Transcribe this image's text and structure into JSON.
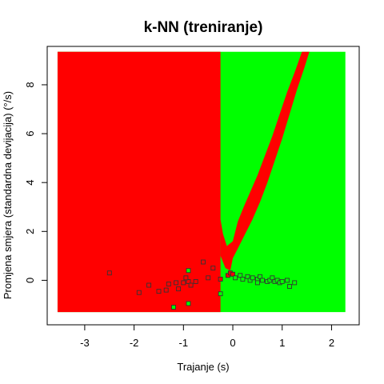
{
  "chart_data": {
    "type": "scatter",
    "title": "k-NN (treniranje)",
    "xlabel": "Trajanje (s)",
    "ylabel": "Promjena smjera (standardna devijacija) (°/s)",
    "xlim": [
      -3.76,
      2.56
    ],
    "ylim": [
      -1.82,
      9.57
    ],
    "x_ticks": [
      -3,
      -2,
      -1,
      0,
      1,
      2
    ],
    "y_ticks": [
      0,
      2,
      4,
      6,
      8
    ],
    "background_region": {
      "x": [
        -3.55,
        2.28
      ],
      "y": [
        -1.3,
        9.35
      ],
      "color": "#00ff00"
    },
    "red_region_left": {
      "x": [
        -3.55,
        -0.25
      ],
      "y": [
        -1.3,
        9.35
      ],
      "color": "#ff0000"
    },
    "red_band": {
      "color": "#ff0000",
      "left_edge": [
        [
          -0.25,
          2.5
        ],
        [
          -0.2,
          1.9
        ],
        [
          -0.12,
          1.4
        ],
        [
          0.0,
          1.6
        ],
        [
          0.1,
          2.4
        ],
        [
          0.22,
          3.0
        ],
        [
          0.35,
          3.6
        ],
        [
          0.5,
          4.3
        ],
        [
          0.65,
          5.1
        ],
        [
          0.8,
          5.9
        ],
        [
          0.95,
          6.8
        ],
        [
          1.1,
          7.7
        ],
        [
          1.25,
          8.5
        ],
        [
          1.4,
          9.35
        ]
      ],
      "right_edge": [
        [
          1.55,
          9.35
        ],
        [
          1.45,
          8.7
        ],
        [
          1.3,
          7.8
        ],
        [
          1.15,
          6.8
        ],
        [
          1.0,
          5.8
        ],
        [
          0.85,
          4.9
        ],
        [
          0.7,
          4.0
        ],
        [
          0.55,
          3.2
        ],
        [
          0.4,
          2.5
        ],
        [
          0.25,
          1.9
        ],
        [
          0.1,
          1.3
        ],
        [
          0.0,
          0.9
        ],
        [
          -0.05,
          0.4
        ],
        [
          -0.15,
          0.5
        ],
        [
          -0.25,
          1.0
        ]
      ]
    },
    "series": [
      {
        "color": "#ff0000",
        "marker": "square",
        "x": [
          -2.5,
          -1.7,
          -1.9,
          -1.5,
          -1.3,
          -1.35,
          -1.15,
          -1.1,
          -1.0,
          -0.9,
          -0.85,
          -0.95,
          -0.75,
          -0.6,
          -0.5,
          -0.4,
          -0.25,
          -0.1,
          -0.05,
          0.0
        ],
        "y": [
          0.3,
          -0.2,
          -0.5,
          -0.45,
          -0.15,
          -0.4,
          -0.1,
          -0.35,
          -0.1,
          -0.05,
          -0.2,
          0.1,
          -0.05,
          0.75,
          0.1,
          0.5,
          0.05,
          0.2,
          0.3,
          0.25
        ]
      },
      {
        "color": "#00ff00",
        "marker": "square",
        "x": [
          -1.2,
          -0.9,
          -0.9,
          -0.25,
          0.05,
          0.15,
          0.2,
          0.3,
          0.35,
          0.4,
          0.5,
          0.5,
          0.55,
          0.6,
          0.7,
          0.75,
          0.8,
          0.85,
          0.9,
          0.95,
          1.0,
          1.1,
          1.15,
          1.25
        ],
        "y": [
          -1.1,
          -0.95,
          0.4,
          -0.55,
          0.1,
          0.2,
          0.05,
          0.15,
          0.0,
          0.1,
          0.05,
          -0.1,
          0.15,
          0.0,
          -0.05,
          0.0,
          0.1,
          -0.05,
          0.0,
          -0.1,
          -0.05,
          0.0,
          -0.25,
          -0.1
        ]
      }
    ]
  }
}
